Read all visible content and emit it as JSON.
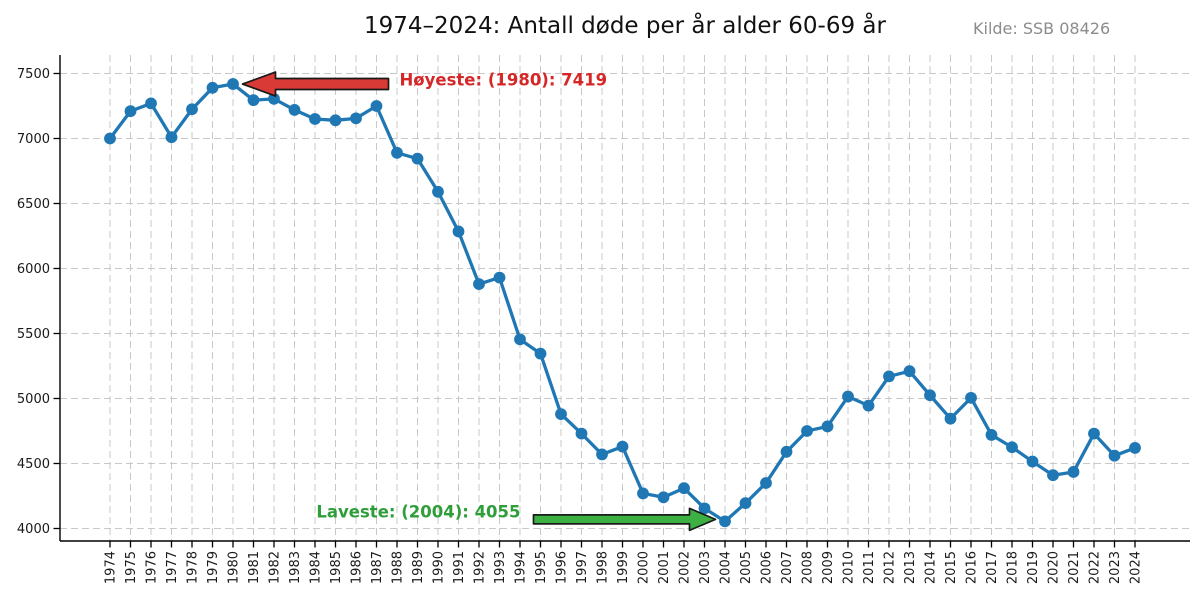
{
  "title": "1974–2024: Antall døde per år alder 60-69 år",
  "source": "Kilde: SSB 08426",
  "annotations": {
    "highest": {
      "label": "Høyeste: (1980): 7419",
      "year": 1980,
      "value": 7419,
      "text_color": "#d62728",
      "arrow_fill": "#d93a35",
      "arrow_outline": "#1a1a1a"
    },
    "lowest": {
      "label": "Laveste: (2004): 4055",
      "year": 2004,
      "value": 4055,
      "text_color": "#2e9e3a",
      "arrow_fill": "#3cb043",
      "arrow_outline": "#1a1a1a"
    }
  },
  "chart_data": {
    "type": "line",
    "title": "1974–2024: Antall døde per år alder 60-69 år",
    "xlabel": "",
    "ylabel": "",
    "x": [
      1974,
      1975,
      1976,
      1977,
      1978,
      1979,
      1980,
      1981,
      1982,
      1983,
      1984,
      1985,
      1986,
      1987,
      1988,
      1989,
      1990,
      1991,
      1992,
      1993,
      1994,
      1995,
      1996,
      1997,
      1998,
      1999,
      2000,
      2001,
      2002,
      2003,
      2004,
      2005,
      2006,
      2007,
      2008,
      2009,
      2010,
      2011,
      2012,
      2013,
      2014,
      2015,
      2016,
      2017,
      2018,
      2019,
      2020,
      2021,
      2022,
      2023,
      2024
    ],
    "series": [
      {
        "name": "Antall døde per år alder 60-69 år",
        "values": [
          7000,
          7210,
          7270,
          7010,
          7225,
          7390,
          7419,
          7295,
          7305,
          7220,
          7150,
          7140,
          7155,
          7250,
          6890,
          6845,
          6590,
          6285,
          5880,
          5930,
          5455,
          5345,
          4880,
          4730,
          4570,
          4630,
          4270,
          4240,
          4310,
          4155,
          4055,
          4195,
          4350,
          4590,
          4750,
          4785,
          5015,
          4945,
          5170,
          5210,
          5025,
          4845,
          5005,
          4720,
          4625,
          4515,
          4410,
          4435,
          4730,
          4560,
          4620
        ]
      }
    ],
    "yticks": [
      4000,
      4500,
      5000,
      5500,
      6000,
      6500,
      7000,
      7500
    ],
    "ylim": [
      3900,
      7640
    ],
    "grid": true,
    "grid_style": "dashed",
    "grid_color": "#c8c8c8",
    "line_color": "#1f77b4",
    "marker": "o",
    "legend_position": "none",
    "tick_label_color": "#1a1a1a",
    "axis_color": "#000000"
  }
}
